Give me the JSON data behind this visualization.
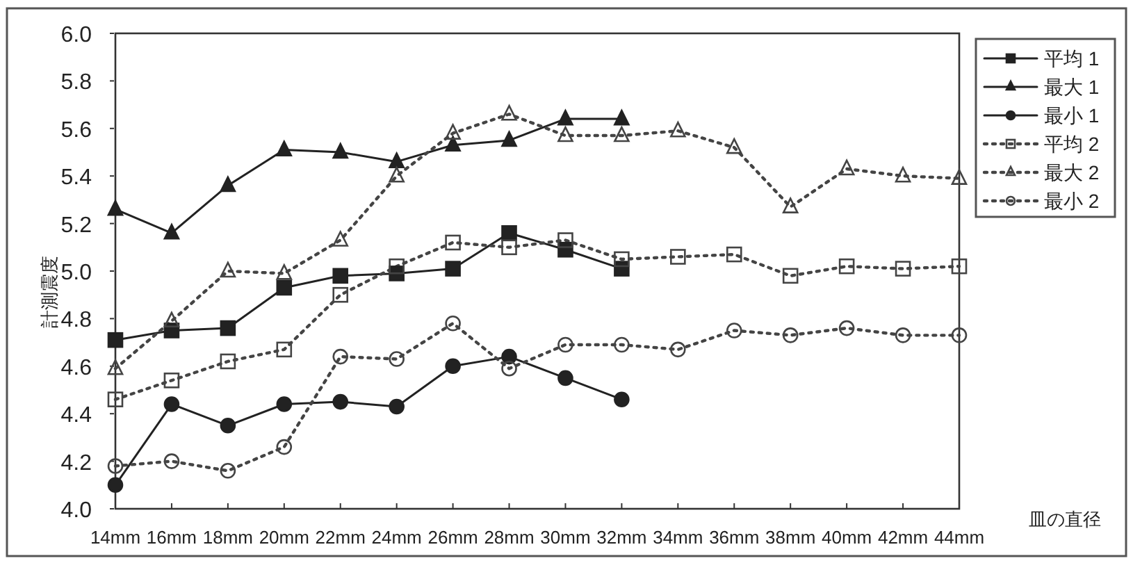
{
  "chart_data": {
    "type": "line",
    "ylabel": "計測震度",
    "xlabel": "皿の直径",
    "categories": [
      "14mm",
      "16mm",
      "18mm",
      "20mm",
      "22mm",
      "24mm",
      "26mm",
      "28mm",
      "30mm",
      "32mm",
      "34mm",
      "36mm",
      "38mm",
      "40mm",
      "42mm",
      "44mm"
    ],
    "ylim": [
      4.0,
      6.0
    ],
    "yticks": [
      {
        "value": 4.0,
        "label": "4.0"
      },
      {
        "value": 4.2,
        "label": "4.2"
      },
      {
        "value": 4.4,
        "label": "4.4"
      },
      {
        "value": 4.6,
        "label": "4.6"
      },
      {
        "value": 4.8,
        "label": "4.8"
      },
      {
        "value": 5.0,
        "label": "5.0"
      },
      {
        "value": 5.2,
        "label": "5.2"
      },
      {
        "value": 5.4,
        "label": "5.4"
      },
      {
        "value": 5.6,
        "label": "5.6"
      },
      {
        "value": 5.8,
        "label": "5.8"
      },
      {
        "value": 6.0,
        "label": "6.0"
      }
    ],
    "grid": false,
    "legend": "right",
    "series": [
      {
        "name": "平均 1",
        "color": "#222222",
        "marker": "square",
        "line_style": "solid",
        "values": [
          4.71,
          4.75,
          4.76,
          4.93,
          4.98,
          4.99,
          5.01,
          5.16,
          5.09,
          5.01,
          null,
          null,
          null,
          null,
          null,
          null
        ]
      },
      {
        "name": "最大 1",
        "color": "#222222",
        "marker": "triangle",
        "line_style": "solid",
        "values": [
          5.26,
          5.16,
          5.36,
          5.51,
          5.5,
          5.46,
          5.53,
          5.55,
          5.64,
          5.64,
          null,
          null,
          null,
          null,
          null,
          null
        ]
      },
      {
        "name": "最小 1",
        "color": "#222222",
        "marker": "circle",
        "line_style": "solid",
        "values": [
          4.1,
          4.44,
          4.35,
          4.44,
          4.45,
          4.43,
          4.6,
          4.64,
          4.55,
          4.46,
          null,
          null,
          null,
          null,
          null,
          null
        ]
      },
      {
        "name": "平均 2",
        "color": "#444444",
        "marker": "square",
        "line_style": "dotted",
        "values": [
          4.46,
          4.54,
          4.62,
          4.67,
          4.9,
          5.02,
          5.12,
          5.1,
          5.13,
          5.05,
          5.06,
          5.07,
          4.98,
          5.02,
          5.01,
          5.02
        ]
      },
      {
        "name": "最大 2",
        "color": "#444444",
        "marker": "triangle",
        "line_style": "dotted",
        "values": [
          4.59,
          4.79,
          5.0,
          4.99,
          5.13,
          5.4,
          5.58,
          5.66,
          5.57,
          5.57,
          5.59,
          5.52,
          5.27,
          5.43,
          5.4,
          5.39
        ]
      },
      {
        "name": "最小 2",
        "color": "#444444",
        "marker": "circle",
        "line_style": "dotted",
        "values": [
          4.18,
          4.2,
          4.16,
          4.26,
          4.64,
          4.63,
          4.78,
          4.59,
          4.69,
          4.69,
          4.67,
          4.75,
          4.73,
          4.76,
          4.73,
          4.73
        ]
      }
    ]
  }
}
